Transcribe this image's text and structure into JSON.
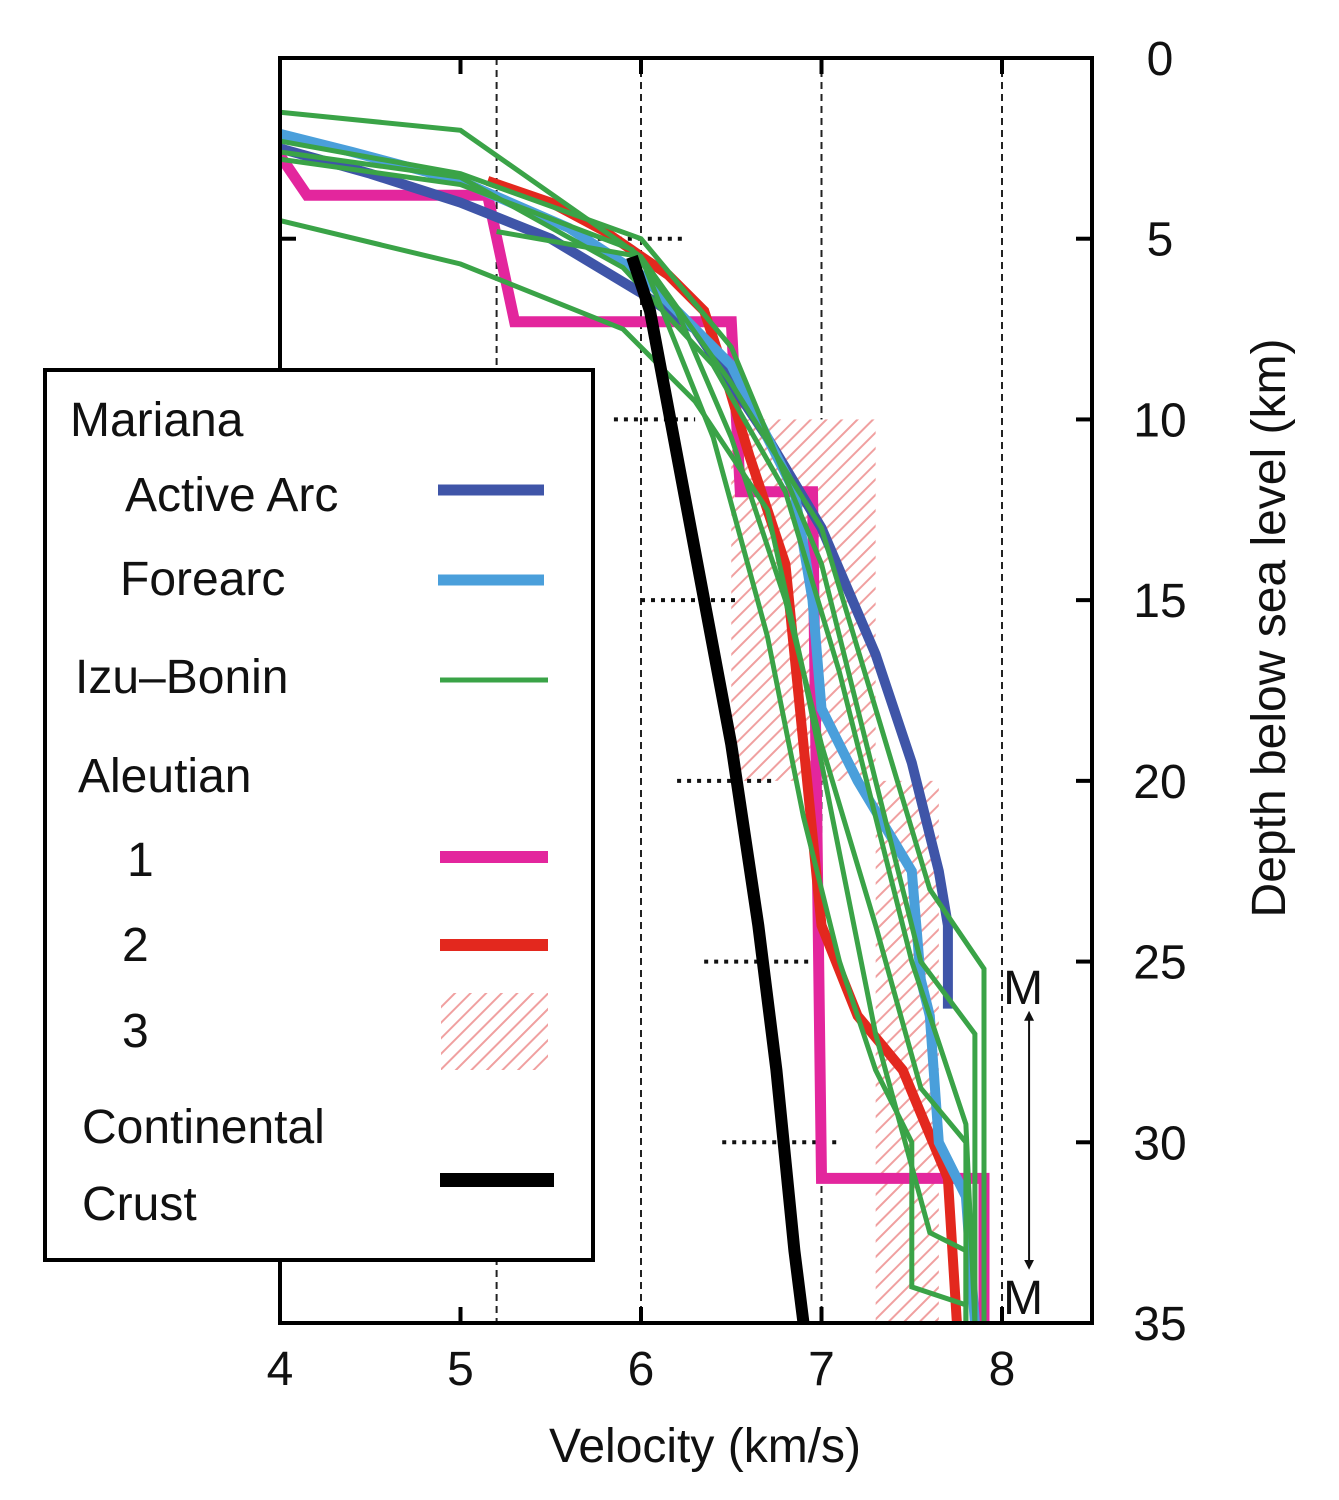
{
  "chart_data": {
    "type": "line",
    "xlabel": "Velocity (km/s)",
    "ylabel": "Depth below sea level (km)",
    "xlim": [
      4,
      8.5
    ],
    "ylim": [
      0,
      35
    ],
    "y_inverted": true,
    "xticks": [
      "4",
      "5",
      "6",
      "7",
      "8"
    ],
    "yticks": [
      "0",
      "5",
      "10",
      "15",
      "20",
      "25",
      "30",
      "35"
    ],
    "vertical_dashed_gridlines_x": [
      5.2,
      6.0,
      7.0,
      8.0
    ],
    "legend": {
      "placement": "left",
      "groups": [
        {
          "label": "Mariana",
          "entries": [
            {
              "label": "Active Arc",
              "series": "mariana_active_arc"
            },
            {
              "label": "Forearc",
              "series": "mariana_forearc"
            }
          ]
        },
        {
          "label": "Izu–Bonin",
          "series": "izu_bonin"
        },
        {
          "label": "Aleutian",
          "entries": [
            {
              "label": "1",
              "series": "aleutian_1"
            },
            {
              "label": "2",
              "series": "aleutian_2"
            },
            {
              "label": "3",
              "series": "aleutian_3"
            }
          ]
        },
        {
          "label_lines": [
            "Continental",
            "Crust"
          ],
          "series": "continental"
        }
      ]
    },
    "annotations": {
      "moho_label": "M",
      "moho_range_depth": [
        26.5,
        33.5
      ],
      "moho_arrow_velocity": 8.15
    },
    "series": [
      {
        "id": "mariana_active_arc",
        "name": "Active Arc",
        "color": "#3f55a8",
        "width": 10,
        "points": [
          [
            4.0,
            2.5
          ],
          [
            4.5,
            3.2
          ],
          [
            5.0,
            4.0
          ],
          [
            5.5,
            5.0
          ],
          [
            6.0,
            6.5
          ],
          [
            6.3,
            7.5
          ],
          [
            6.5,
            9.0
          ],
          [
            6.7,
            10.5
          ],
          [
            7.0,
            13.0
          ],
          [
            7.3,
            16.5
          ],
          [
            7.5,
            19.5
          ],
          [
            7.65,
            22.5
          ],
          [
            7.7,
            24.0
          ],
          [
            7.7,
            26.3
          ]
        ]
      },
      {
        "id": "mariana_forearc",
        "name": "Forearc",
        "color": "#4a9fdb",
        "width": 10,
        "points": [
          [
            4.0,
            2.1
          ],
          [
            4.4,
            2.6
          ],
          [
            5.0,
            3.4
          ],
          [
            5.6,
            4.7
          ],
          [
            6.0,
            6.0
          ],
          [
            6.5,
            8.5
          ],
          [
            6.85,
            12.0
          ],
          [
            6.95,
            15.0
          ],
          [
            7.0,
            18.0
          ],
          [
            7.2,
            20.0
          ],
          [
            7.5,
            22.5
          ],
          [
            7.55,
            25.5
          ],
          [
            7.6,
            26.5
          ],
          [
            7.65,
            30.0
          ],
          [
            7.8,
            31.5
          ],
          [
            7.85,
            35.0
          ]
        ]
      },
      {
        "id": "izu_bonin",
        "name": "Izu–Bonin",
        "color": "#3aa347",
        "width": 5,
        "lines": [
          [
            [
              4.0,
              1.5
            ],
            [
              5.0,
              2.0
            ],
            [
              6.0,
              5.5
            ],
            [
              6.5,
              9.0
            ],
            [
              7.0,
              13.0
            ],
            [
              7.3,
              18.0
            ],
            [
              7.6,
              23.0
            ],
            [
              7.9,
              25.2
            ],
            [
              7.9,
              35.0
            ]
          ],
          [
            [
              4.0,
              2.3
            ],
            [
              5.0,
              3.2
            ],
            [
              6.0,
              5.0
            ],
            [
              6.5,
              8.0
            ],
            [
              7.0,
              14.0
            ],
            [
              7.3,
              20.0
            ],
            [
              7.55,
              25.0
            ],
            [
              7.85,
              27.0
            ],
            [
              7.85,
              35.0
            ]
          ],
          [
            [
              4.0,
              2.6
            ],
            [
              5.0,
              3.3
            ],
            [
              5.9,
              5.8
            ],
            [
              6.4,
              8.5
            ],
            [
              6.8,
              12.0
            ],
            [
              7.1,
              17.0
            ],
            [
              7.3,
              21.0
            ],
            [
              7.5,
              25.0
            ],
            [
              7.8,
              29.5
            ],
            [
              7.85,
              35.0
            ]
          ],
          [
            [
              4.0,
              4.5
            ],
            [
              5.0,
              5.7
            ],
            [
              5.9,
              7.5
            ],
            [
              6.3,
              9.5
            ],
            [
              6.7,
              12.5
            ],
            [
              6.9,
              17.0
            ],
            [
              7.1,
              22.0
            ],
            [
              7.3,
              27.0
            ],
            [
              7.6,
              32.5
            ],
            [
              7.8,
              33.0
            ],
            [
              7.8,
              35.0
            ]
          ],
          [
            [
              4.0,
              2.8
            ],
            [
              5.0,
              3.5
            ],
            [
              5.95,
              5.3
            ],
            [
              6.2,
              7.0
            ],
            [
              6.5,
              10.5
            ],
            [
              6.8,
              15.0
            ],
            [
              7.0,
              19.0
            ],
            [
              7.3,
              24.0
            ],
            [
              7.55,
              28.5
            ],
            [
              7.8,
              30.0
            ],
            [
              7.8,
              35.0
            ]
          ],
          [
            [
              5.2,
              4.8
            ],
            [
              6.0,
              5.5
            ],
            [
              6.4,
              10.5
            ],
            [
              6.7,
              16.0
            ],
            [
              6.9,
              21.0
            ],
            [
              7.1,
              25.0
            ],
            [
              7.3,
              28.0
            ],
            [
              7.5,
              30.0
            ],
            [
              7.5,
              34.0
            ],
            [
              7.8,
              34.5
            ]
          ]
        ]
      },
      {
        "id": "aleutian_1",
        "name": "1",
        "color": "#e3269d",
        "width": 11,
        "points": [
          [
            4.0,
            2.7
          ],
          [
            4.15,
            3.8
          ],
          [
            5.15,
            3.8
          ],
          [
            5.3,
            7.3
          ],
          [
            6.5,
            7.3
          ],
          [
            6.55,
            12.0
          ],
          [
            6.95,
            12.0
          ],
          [
            7.0,
            31.0
          ],
          [
            7.9,
            31.0
          ],
          [
            7.9,
            35.0
          ]
        ]
      },
      {
        "id": "aleutian_2",
        "name": "2",
        "color": "#e3281e",
        "width": 10,
        "points": [
          [
            5.15,
            3.4
          ],
          [
            5.5,
            4.0
          ],
          [
            5.8,
            4.8
          ],
          [
            6.15,
            6.0
          ],
          [
            6.35,
            7.0
          ],
          [
            6.45,
            8.5
          ],
          [
            6.6,
            11.0
          ],
          [
            6.8,
            14.0
          ],
          [
            6.9,
            19.0
          ],
          [
            7.0,
            24.0
          ],
          [
            7.2,
            26.5
          ],
          [
            7.45,
            28.0
          ],
          [
            7.7,
            31.0
          ],
          [
            7.75,
            35.0
          ]
        ]
      },
      {
        "id": "aleutian_3",
        "name": "3",
        "type": "hatched_range",
        "color": "#e88a8a",
        "boxes": [
          {
            "depth": [
              10,
              20
            ],
            "velocity": [
              6.5,
              7.3
            ]
          },
          {
            "depth": [
              20,
              35
            ],
            "velocity": [
              7.3,
              7.65
            ]
          }
        ]
      },
      {
        "id": "continental",
        "name": "Continental Crust",
        "color": "#000000",
        "width": 12,
        "points": [
          [
            5.95,
            5.5
          ],
          [
            6.05,
            7.0
          ],
          [
            6.2,
            11.0
          ],
          [
            6.35,
            15.0
          ],
          [
            6.5,
            19.0
          ],
          [
            6.65,
            24.0
          ],
          [
            6.75,
            28.0
          ],
          [
            6.85,
            33.0
          ],
          [
            6.9,
            35.0
          ]
        ]
      }
    ],
    "dotted_depth_markers": [
      {
        "depth": 5,
        "velocity": [
          5.65,
          6.25
        ]
      },
      {
        "depth": 10,
        "velocity": [
          5.85,
          6.3
        ]
      },
      {
        "depth": 15,
        "velocity": [
          6.0,
          6.55
        ]
      },
      {
        "depth": 20,
        "velocity": [
          6.2,
          6.75
        ]
      },
      {
        "depth": 25,
        "velocity": [
          6.35,
          6.95
        ]
      },
      {
        "depth": 30,
        "velocity": [
          6.45,
          7.1
        ]
      },
      {
        "depth": 35,
        "velocity": [
          6.6,
          7.2
        ]
      }
    ]
  }
}
